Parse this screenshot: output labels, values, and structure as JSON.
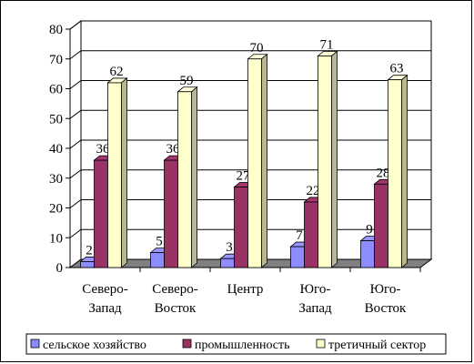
{
  "chart_data": {
    "type": "bar",
    "title": "",
    "xlabel": "",
    "ylabel": "",
    "ylim": [
      0,
      80
    ],
    "yticks": [
      0,
      10,
      20,
      30,
      40,
      50,
      60,
      70,
      80
    ],
    "grid": true,
    "legend_position": "bottom",
    "categories": [
      [
        "Северо-",
        "Запад"
      ],
      [
        "Северо-",
        "Восток"
      ],
      [
        "Центр"
      ],
      [
        "Юго-",
        "Запад"
      ],
      [
        "Юго-",
        "Восток"
      ]
    ],
    "series": [
      {
        "name": "сельское хозяйство",
        "color": "#8c8cff",
        "values": [
          2,
          5,
          3,
          7,
          9
        ]
      },
      {
        "name": "промышленность",
        "color": "#993366",
        "values": [
          36,
          36,
          27,
          22,
          28
        ]
      },
      {
        "name": "третичный сектор",
        "color": "#ffffcc",
        "values": [
          62,
          59,
          70,
          71,
          63
        ]
      }
    ]
  }
}
